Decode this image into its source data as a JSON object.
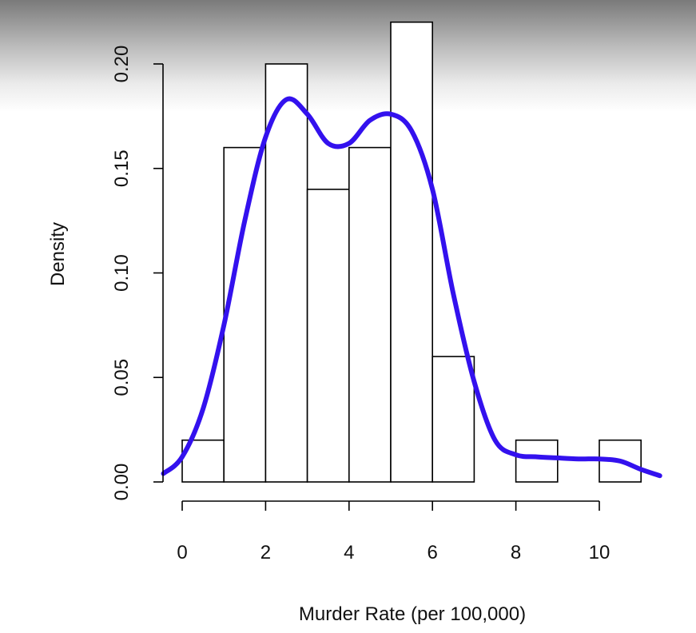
{
  "chart_data": {
    "type": "bar",
    "subtype": "histogram with density curve",
    "title": "",
    "xlabel": "Murder Rate (per 100,000)",
    "ylabel": "Density",
    "xlim": [
      -0.45,
      11.45
    ],
    "ylim": [
      0,
      0.22
    ],
    "x_ticks": [
      "0",
      "2",
      "4",
      "6",
      "8",
      "10"
    ],
    "y_ticks": [
      "0.00",
      "0.05",
      "0.10",
      "0.15",
      "0.20"
    ],
    "bins": [
      {
        "x0": 0,
        "x1": 1,
        "density": 0.02
      },
      {
        "x0": 1,
        "x1": 2,
        "density": 0.16
      },
      {
        "x0": 2,
        "x1": 3,
        "density": 0.2
      },
      {
        "x0": 3,
        "x1": 4,
        "density": 0.14
      },
      {
        "x0": 4,
        "x1": 5,
        "density": 0.16
      },
      {
        "x0": 5,
        "x1": 6,
        "density": 0.22
      },
      {
        "x0": 6,
        "x1": 7,
        "density": 0.06
      },
      {
        "x0": 7,
        "x1": 8,
        "density": 0.0
      },
      {
        "x0": 8,
        "x1": 9,
        "density": 0.02
      },
      {
        "x0": 9,
        "x1": 10,
        "density": 0.0
      },
      {
        "x0": 10,
        "x1": 11,
        "density": 0.02
      }
    ],
    "density_curve": {
      "color": "#3311ee",
      "x": [
        -0.45,
        0,
        0.5,
        1,
        1.5,
        2,
        2.5,
        3,
        3.5,
        4,
        4.5,
        5,
        5.5,
        6,
        6.5,
        7,
        7.5,
        8,
        8.5,
        9,
        9.5,
        10,
        10.5,
        11,
        11.45
      ],
      "y": [
        0.004,
        0.012,
        0.035,
        0.075,
        0.125,
        0.165,
        0.183,
        0.176,
        0.162,
        0.162,
        0.173,
        0.176,
        0.168,
        0.14,
        0.09,
        0.048,
        0.02,
        0.013,
        0.012,
        0.0115,
        0.011,
        0.011,
        0.01,
        0.006,
        0.003
      ]
    },
    "bar_fill": "#ffffff",
    "bar_stroke": "#000000",
    "grid": false,
    "legend": "none"
  }
}
